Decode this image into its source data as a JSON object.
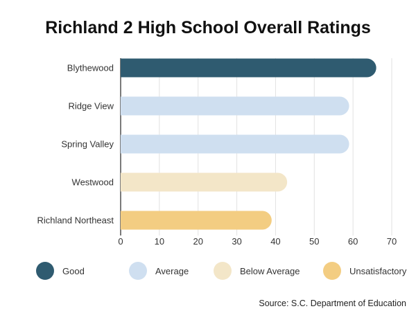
{
  "chart_data": {
    "type": "bar",
    "orientation": "horizontal",
    "title": "Richland 2 High School Overall Ratings",
    "categories": [
      "Blythewood",
      "Ridge View",
      "Spring Valley",
      "Westwood",
      "Richland Northeast"
    ],
    "values": [
      66,
      59,
      59,
      43,
      39
    ],
    "ratings": [
      "Good",
      "Average",
      "Average",
      "Below Average",
      "Unsatisfactory"
    ],
    "xlim": [
      0,
      70
    ],
    "xticks": [
      0,
      10,
      20,
      30,
      40,
      50,
      60,
      70
    ],
    "grid": true,
    "legend": [
      {
        "label": "Good",
        "color": "#2f5b70"
      },
      {
        "label": "Average",
        "color": "#cfdff0"
      },
      {
        "label": "Below Average",
        "color": "#f3e6c8"
      },
      {
        "label": "Unsatisfactory",
        "color": "#f3cd82"
      }
    ],
    "legend_placement": "bottom",
    "source": "Source: S.C. Department of Education"
  }
}
